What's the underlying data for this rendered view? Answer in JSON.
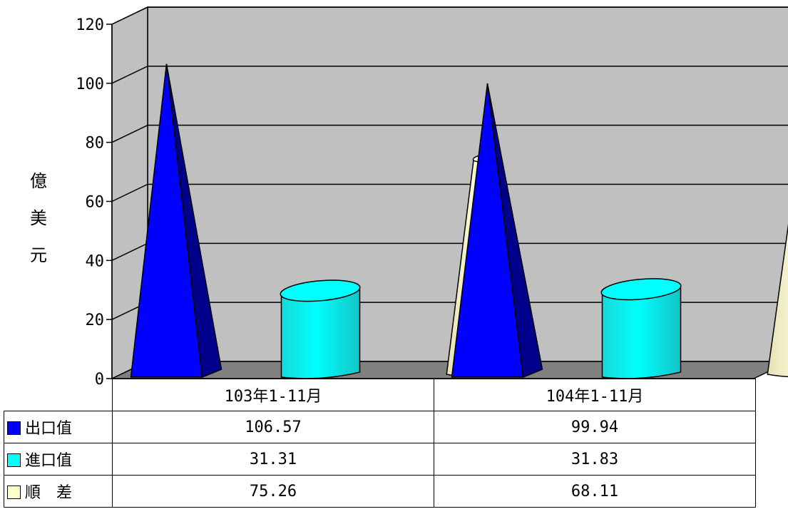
{
  "chart_data": {
    "type": "bar",
    "bar_shapes": [
      "pyramid",
      "cylinder",
      "cone"
    ],
    "view": "3d",
    "categories": [
      "103年1-11月",
      "104年1-11月"
    ],
    "series": [
      {
        "name": "出口值",
        "values": [
          106.57,
          99.94
        ],
        "color": "#0000FF"
      },
      {
        "name": "進口值",
        "values": [
          31.31,
          31.83
        ],
        "color": "#00FFFF"
      },
      {
        "name": "順　差",
        "values": [
          75.26,
          68.11
        ],
        "color": "#FFFFCC"
      }
    ],
    "series_labels": [
      "出口值",
      "進口值",
      "順　差"
    ],
    "value_labels": [
      [
        "106.57",
        "99.94"
      ],
      [
        "31.31",
        "31.83"
      ],
      [
        "75.26",
        "68.11"
      ]
    ],
    "ylabel": "億美元",
    "ylabel_chars": [
      "億",
      "美",
      "元"
    ],
    "ylim": [
      0,
      120
    ],
    "yticks": [
      "0",
      "20",
      "40",
      "60",
      "80",
      "100",
      "120"
    ],
    "grid": true,
    "legend": "data-table",
    "wall_color": "#C0C0C0",
    "floor_color": "#808080"
  }
}
